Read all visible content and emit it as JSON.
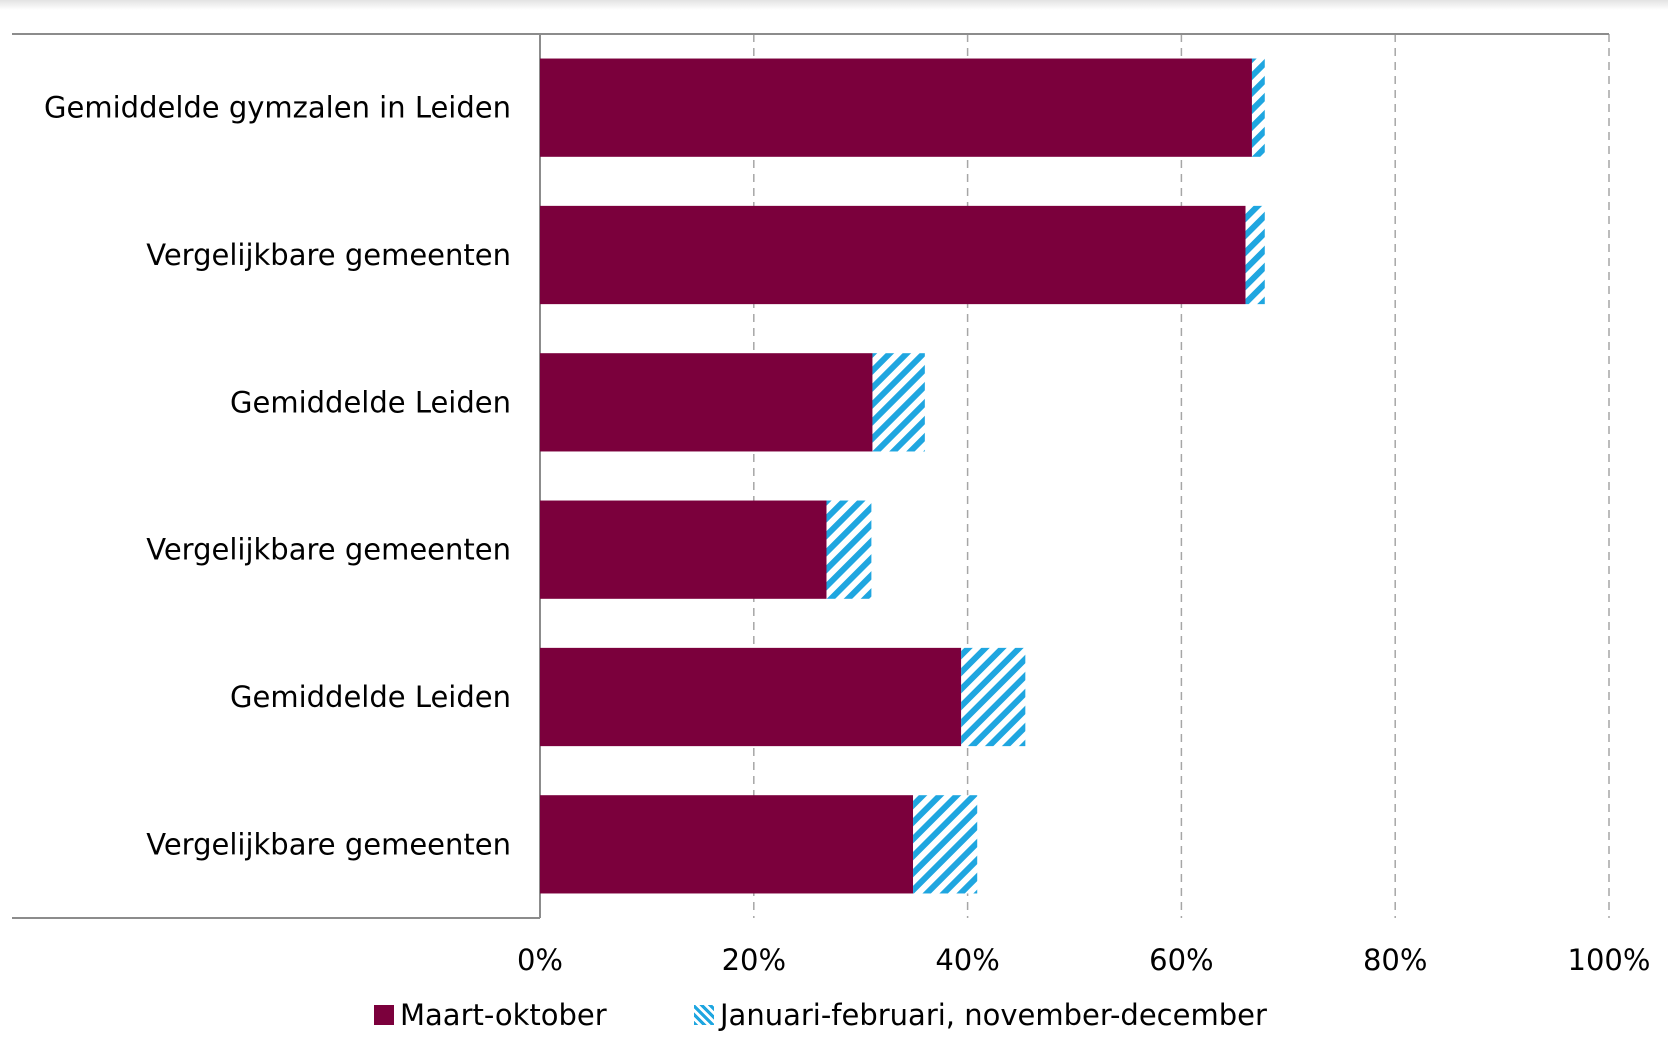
{
  "chart_data": {
    "type": "bar",
    "orientation": "horizontal",
    "stacked": true,
    "categories": [
      "Gemiddelde gymzalen in Leiden",
      "Vergelijkbare gemeenten",
      "Gemiddelde Leiden",
      "Vergelijkbare gemeenten",
      "Gemiddelde Leiden",
      "Vergelijkbare gemeenten"
    ],
    "series": [
      {
        "name": "Maart-oktober",
        "values": [
          66.6,
          66.0,
          31.1,
          26.8,
          39.4,
          34.9
        ],
        "color": "#7b003c",
        "pattern": "solid"
      },
      {
        "name": "Januari-februari, november-december",
        "values": [
          1.2,
          1.8,
          4.9,
          4.2,
          6.0,
          6.0
        ],
        "color": "#1fa6e0",
        "pattern": "diagonal-hatch"
      }
    ],
    "x_ticks": [
      "0%",
      "20%",
      "40%",
      "60%",
      "80%",
      "100%"
    ],
    "xlim": [
      0,
      100
    ],
    "grid": "vertical dashed",
    "legend_position": "bottom",
    "title": "",
    "xlabel": "",
    "ylabel": ""
  }
}
